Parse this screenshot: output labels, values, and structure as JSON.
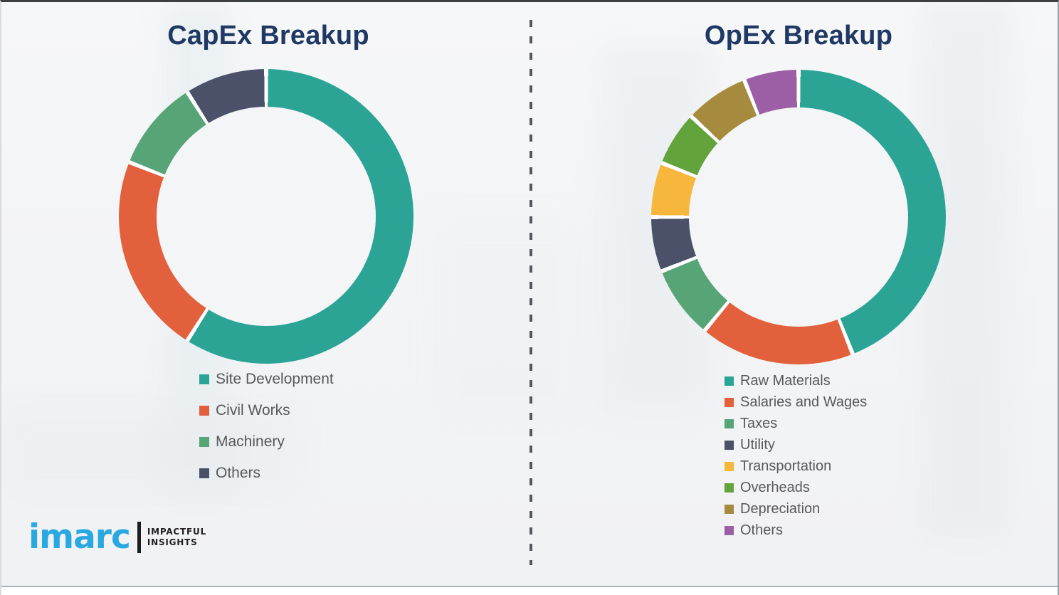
{
  "brand": {
    "logo_text": "imarc",
    "tagline_line1": "IMPACTFUL",
    "tagline_line2": "INSIGHTS",
    "logo_color": "#2AA9E0"
  },
  "divider": {
    "style": "vertical-dashed",
    "color": "#55595F"
  },
  "colors": {
    "title_text": "#1F3864",
    "legend_text": "#595959",
    "background": "#F4F5F7",
    "slice_gap": "#FFFFFF"
  },
  "chart_data": [
    {
      "type": "pie",
      "subtype": "donut",
      "title": "CapEx Breakup",
      "labels": [
        "Site Development",
        "Civil Works",
        "Machinery",
        "Others"
      ],
      "values": [
        59,
        22,
        10,
        9
      ],
      "values_are_estimates_percent": true,
      "colors": [
        "#2BA496",
        "#E2613C",
        "#57A477",
        "#4A5168"
      ],
      "start_angle_deg": 0,
      "direction": "clockwise",
      "slice_gap_deg": 1.6,
      "legend_position": "below-left",
      "data_labels_shown": false
    },
    {
      "type": "pie",
      "subtype": "donut",
      "title": "OpEx Breakup",
      "labels": [
        "Raw Materials",
        "Salaries and Wages",
        "Taxes",
        "Utility",
        "Transportation",
        "Overheads",
        "Depreciation",
        "Others"
      ],
      "values": [
        44,
        17,
        8,
        6,
        6,
        6,
        7,
        6
      ],
      "values_are_estimates_percent": true,
      "colors": [
        "#2BA496",
        "#E2613C",
        "#57A477",
        "#4A5168",
        "#F6B73C",
        "#62A33C",
        "#A68A3D",
        "#9C5FA5"
      ],
      "start_angle_deg": 0,
      "direction": "clockwise",
      "slice_gap_deg": 1.6,
      "legend_position": "below-left",
      "data_labels_shown": false
    }
  ]
}
